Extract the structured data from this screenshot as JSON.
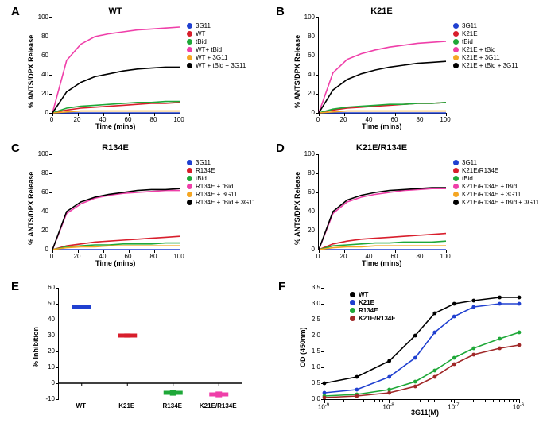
{
  "palette": {
    "blue": "#2040d0",
    "red": "#d81e2c",
    "green": "#1ea838",
    "pink": "#ef3fa9",
    "orange": "#f5a623",
    "black": "#000000",
    "darkred": "#a02828"
  },
  "panelA": {
    "label": "A",
    "title": "WT",
    "xlabel": "Time (mins)",
    "ylabel": "% ANTS/DPX Release",
    "xlim": [
      0,
      100
    ],
    "ylim": [
      0,
      100
    ],
    "xtick": 20,
    "ytick": 20,
    "series": [
      {
        "name": "3G11",
        "color": "blue",
        "y": [
          0,
          0,
          0,
          0,
          0,
          0,
          0,
          0,
          0,
          0
        ]
      },
      {
        "name": "WT",
        "color": "red",
        "y": [
          0,
          3,
          5,
          6,
          7,
          8,
          9,
          10,
          10,
          11
        ]
      },
      {
        "name": "tBid",
        "color": "green",
        "y": [
          0,
          5,
          7,
          8,
          9,
          10,
          11,
          11,
          12,
          12
        ]
      },
      {
        "name": "WT+ tBid",
        "color": "pink",
        "y": [
          0,
          55,
          72,
          80,
          83,
          85,
          87,
          88,
          89,
          90
        ]
      },
      {
        "name": "WT + 3G11",
        "color": "orange",
        "y": [
          0,
          1,
          2,
          2,
          2,
          2,
          2,
          2,
          2,
          2
        ]
      },
      {
        "name": "WT + tBid + 3G11",
        "color": "black",
        "y": [
          0,
          22,
          32,
          38,
          41,
          44,
          46,
          47,
          48,
          48
        ]
      }
    ]
  },
  "panelB": {
    "label": "B",
    "title": "K21E",
    "xlabel": "Time (mins)",
    "ylabel": "% ANTS/DPX Release",
    "xlim": [
      0,
      100
    ],
    "ylim": [
      0,
      100
    ],
    "xtick": 20,
    "ytick": 20,
    "series": [
      {
        "name": "3G11",
        "color": "blue",
        "y": [
          0,
          0,
          0,
          0,
          0,
          0,
          0,
          0,
          0,
          0
        ]
      },
      {
        "name": "K21E",
        "color": "red",
        "y": [
          0,
          3,
          5,
          6,
          7,
          8,
          9,
          10,
          10,
          11
        ]
      },
      {
        "name": "tBid",
        "color": "green",
        "y": [
          0,
          4,
          6,
          7,
          8,
          9,
          9,
          10,
          10,
          11
        ]
      },
      {
        "name": "K21E + tBid",
        "color": "pink",
        "y": [
          0,
          42,
          56,
          62,
          66,
          69,
          71,
          73,
          74,
          75
        ]
      },
      {
        "name": "K21E + 3G11",
        "color": "orange",
        "y": [
          0,
          1,
          2,
          2,
          2,
          2,
          2,
          2,
          2,
          2
        ]
      },
      {
        "name": "K21E + tBid + 3G11",
        "color": "black",
        "y": [
          0,
          24,
          35,
          41,
          45,
          48,
          50,
          52,
          53,
          54
        ]
      }
    ]
  },
  "panelC": {
    "label": "C",
    "title": "R134E",
    "xlabel": "Time (mins)",
    "ylabel": "% ANTS/DPX Release",
    "xlim": [
      0,
      100
    ],
    "ylim": [
      0,
      100
    ],
    "xtick": 20,
    "ytick": 20,
    "series": [
      {
        "name": "3G11",
        "color": "blue",
        "y": [
          0,
          0,
          0,
          0,
          0,
          0,
          0,
          0,
          0,
          0
        ]
      },
      {
        "name": "R134E",
        "color": "red",
        "y": [
          0,
          4,
          6,
          8,
          9,
          10,
          11,
          12,
          13,
          14
        ]
      },
      {
        "name": "tBid",
        "color": "green",
        "y": [
          0,
          3,
          4,
          5,
          5,
          6,
          6,
          6,
          7,
          7
        ]
      },
      {
        "name": "R134E + tBid",
        "color": "pink",
        "y": [
          0,
          38,
          48,
          54,
          57,
          59,
          60,
          61,
          62,
          62
        ]
      },
      {
        "name": "R134E + 3G11",
        "color": "orange",
        "y": [
          0,
          2,
          3,
          3,
          4,
          4,
          4,
          4,
          4,
          4
        ]
      },
      {
        "name": "R134E + tBid + 3G11",
        "color": "black",
        "y": [
          0,
          40,
          50,
          55,
          58,
          60,
          62,
          63,
          63,
          64
        ]
      }
    ]
  },
  "panelD": {
    "label": "D",
    "title": "K21E/R134E",
    "xlabel": "Time (mins)",
    "ylabel": "% ANTS/DPX Release",
    "xlim": [
      0,
      100
    ],
    "ylim": [
      0,
      100
    ],
    "xtick": 20,
    "ytick": 20,
    "series": [
      {
        "name": "3G11",
        "color": "blue",
        "y": [
          0,
          0,
          0,
          0,
          0,
          0,
          0,
          0,
          0,
          0
        ]
      },
      {
        "name": "K21E/R134E",
        "color": "red",
        "y": [
          0,
          6,
          9,
          11,
          12,
          13,
          14,
          15,
          16,
          17
        ]
      },
      {
        "name": "tBid",
        "color": "green",
        "y": [
          0,
          4,
          5,
          6,
          7,
          7,
          8,
          8,
          8,
          9
        ]
      },
      {
        "name": "K21E/R134E + tBid",
        "color": "pink",
        "y": [
          0,
          38,
          50,
          55,
          58,
          60,
          62,
          63,
          64,
          64
        ]
      },
      {
        "name": "K21E/R134E + 3G11",
        "color": "orange",
        "y": [
          0,
          2,
          3,
          3,
          4,
          4,
          4,
          4,
          4,
          4
        ]
      },
      {
        "name": "K21E/R134E + tBid + 3G11",
        "color": "black",
        "y": [
          0,
          40,
          52,
          57,
          60,
          62,
          63,
          64,
          65,
          65
        ]
      }
    ]
  },
  "panelE": {
    "label": "E",
    "ylabel": "% Inhibition",
    "ylim": [
      -10,
      60
    ],
    "ytick": 10,
    "categories": [
      "WT",
      "K21E",
      "R134E",
      "K21E/R134E"
    ],
    "colors": [
      "blue",
      "red",
      "green",
      "pink"
    ],
    "values": [
      48,
      30,
      -6,
      -7
    ],
    "err": [
      1,
      1,
      1.5,
      1.5
    ]
  },
  "panelF": {
    "label": "F",
    "ylabel": "OD (450nm)",
    "xlabel": "3G11(M)",
    "ylim": [
      0,
      3.5
    ],
    "ytick": 0.5,
    "xticks_exp": [
      -9,
      -8,
      -7,
      -6
    ],
    "series": [
      {
        "name": "WT",
        "color": "black",
        "x": [
          -9,
          -8.5,
          -8,
          -7.6,
          -7.3,
          -7,
          -6.7,
          -6.3,
          -6
        ],
        "y": [
          0.5,
          0.7,
          1.2,
          2.0,
          2.7,
          3.0,
          3.1,
          3.2,
          3.2
        ]
      },
      {
        "name": "K21E",
        "color": "blue",
        "x": [
          -9,
          -8.5,
          -8,
          -7.6,
          -7.3,
          -7,
          -6.7,
          -6.3,
          -6
        ],
        "y": [
          0.2,
          0.3,
          0.7,
          1.3,
          2.1,
          2.6,
          2.9,
          3.0,
          3.0
        ]
      },
      {
        "name": "R134E",
        "color": "green",
        "x": [
          -9,
          -8.5,
          -8,
          -7.6,
          -7.3,
          -7,
          -6.7,
          -6.3,
          -6
        ],
        "y": [
          0.1,
          0.15,
          0.3,
          0.55,
          0.9,
          1.3,
          1.6,
          1.9,
          2.1
        ]
      },
      {
        "name": "K21E/R134E",
        "color": "darkred",
        "x": [
          -9,
          -8.5,
          -8,
          -7.6,
          -7.3,
          -7,
          -6.7,
          -6.3,
          -6
        ],
        "y": [
          0.05,
          0.1,
          0.2,
          0.4,
          0.7,
          1.1,
          1.4,
          1.6,
          1.7
        ]
      }
    ]
  }
}
